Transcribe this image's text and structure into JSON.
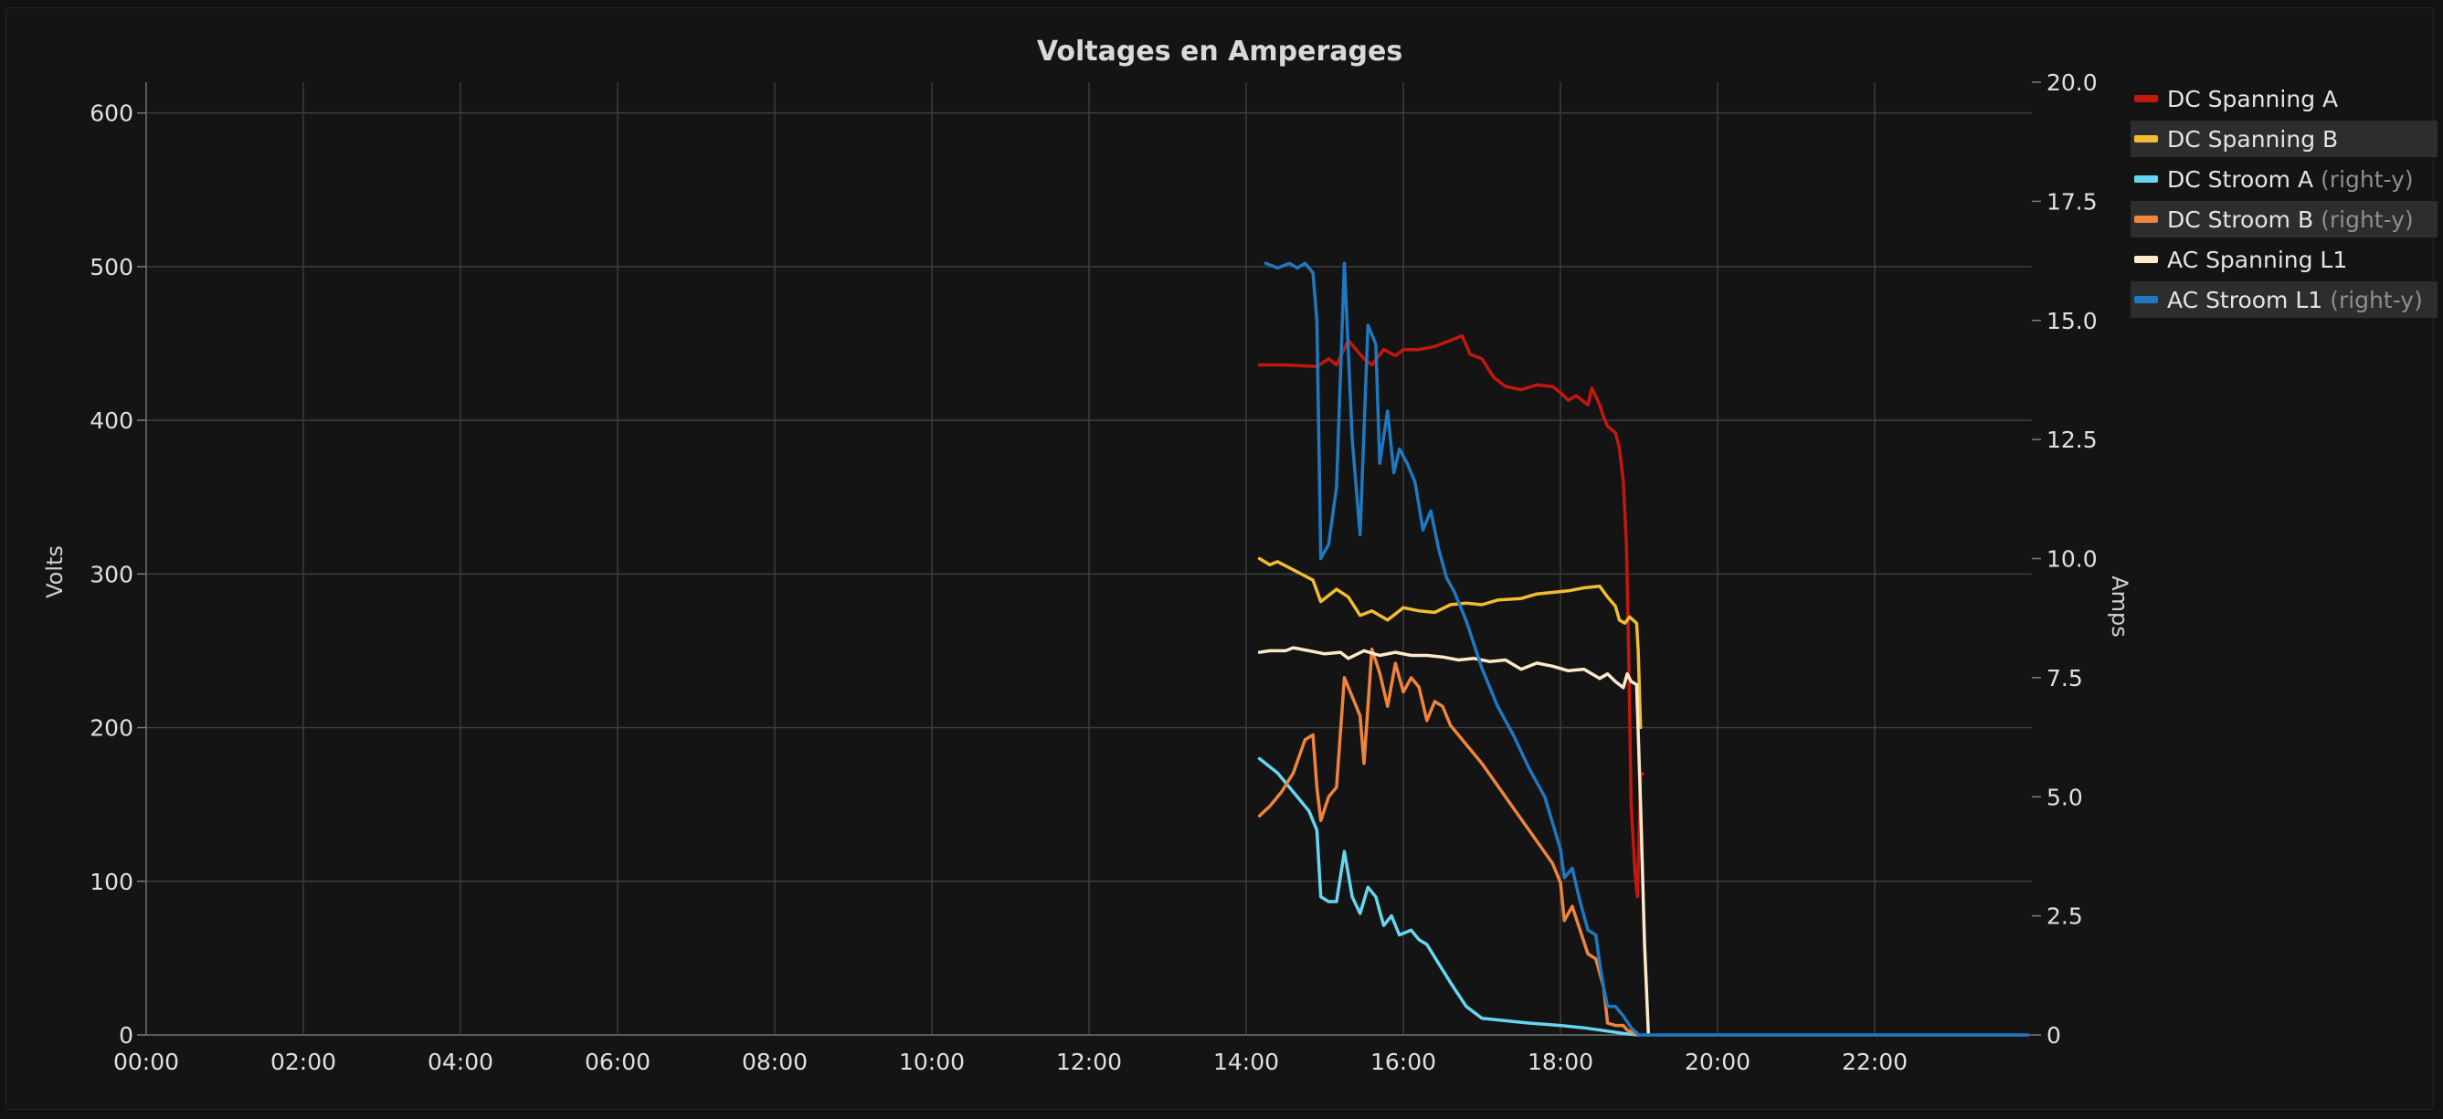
{
  "panel": {
    "title": "Voltages en Amperages"
  },
  "chart_data": {
    "type": "line",
    "title": "Voltages en Amperages",
    "xlabel": "",
    "ylabel": "Volts",
    "y2label": "Amps",
    "xlim": [
      0,
      24
    ],
    "ylim": [
      0,
      620
    ],
    "y2lim": [
      0,
      20
    ],
    "grid": true,
    "legend_position": "right",
    "x_tick_labels": [
      "00:00",
      "02:00",
      "04:00",
      "06:00",
      "08:00",
      "10:00",
      "12:00",
      "14:00",
      "16:00",
      "18:00",
      "20:00",
      "22:00"
    ],
    "y_tick_labels": [
      "0",
      "100",
      "200",
      "300",
      "400",
      "500",
      "600"
    ],
    "y2_tick_labels": [
      "0",
      "2.5",
      "5.0",
      "7.5",
      "10.0",
      "12.5",
      "15.0",
      "17.5",
      "20.0"
    ],
    "series": [
      {
        "name": "DC Spanning A",
        "axis": "left",
        "color": "#c4170f",
        "points": [
          [
            14.17,
            436
          ],
          [
            14.5,
            436
          ],
          [
            14.9,
            435
          ],
          [
            15.05,
            440
          ],
          [
            15.15,
            436
          ],
          [
            15.3,
            452
          ],
          [
            15.5,
            440
          ],
          [
            15.6,
            436
          ],
          [
            15.75,
            446
          ],
          [
            15.9,
            442
          ],
          [
            16.0,
            446
          ],
          [
            16.2,
            446
          ],
          [
            16.4,
            448
          ],
          [
            16.6,
            452
          ],
          [
            16.75,
            455
          ],
          [
            16.85,
            443
          ],
          [
            17.0,
            440
          ],
          [
            17.15,
            428
          ],
          [
            17.3,
            422
          ],
          [
            17.5,
            420
          ],
          [
            17.7,
            423
          ],
          [
            17.9,
            422
          ],
          [
            18.0,
            418
          ],
          [
            18.1,
            413
          ],
          [
            18.2,
            416
          ],
          [
            18.35,
            410
          ],
          [
            18.4,
            421
          ],
          [
            18.5,
            410
          ],
          [
            18.55,
            402
          ],
          [
            18.6,
            396
          ],
          [
            18.7,
            392
          ],
          [
            18.75,
            382
          ],
          [
            18.8,
            360
          ],
          [
            18.84,
            320
          ],
          [
            18.87,
            245
          ],
          [
            18.9,
            150
          ],
          [
            18.95,
            105
          ],
          [
            18.98,
            90
          ],
          [
            19.02,
            170
          ],
          [
            19.05,
            170
          ]
        ]
      },
      {
        "name": "DC Spanning B",
        "axis": "left",
        "color": "#f2bd32",
        "points": [
          [
            14.17,
            310
          ],
          [
            14.3,
            306
          ],
          [
            14.4,
            308
          ],
          [
            14.55,
            304
          ],
          [
            14.7,
            300
          ],
          [
            14.85,
            296
          ],
          [
            14.95,
            282
          ],
          [
            15.15,
            290
          ],
          [
            15.3,
            285
          ],
          [
            15.45,
            273
          ],
          [
            15.6,
            276
          ],
          [
            15.8,
            270
          ],
          [
            16.0,
            278
          ],
          [
            16.2,
            276
          ],
          [
            16.4,
            275
          ],
          [
            16.6,
            280
          ],
          [
            16.8,
            281
          ],
          [
            17.0,
            280
          ],
          [
            17.2,
            283
          ],
          [
            17.5,
            284
          ],
          [
            17.7,
            287
          ],
          [
            17.9,
            288
          ],
          [
            18.1,
            289
          ],
          [
            18.3,
            291
          ],
          [
            18.5,
            292
          ],
          [
            18.6,
            285
          ],
          [
            18.7,
            279
          ],
          [
            18.75,
            270
          ],
          [
            18.82,
            268
          ],
          [
            18.88,
            272
          ],
          [
            18.97,
            268
          ],
          [
            18.99,
            250
          ],
          [
            19.02,
            200
          ]
        ]
      },
      {
        "name": "DC Stroom A",
        "axis": "right",
        "color": "#67d5f0",
        "points": [
          [
            14.17,
            5.8
          ],
          [
            14.4,
            5.5
          ],
          [
            14.6,
            5.1
          ],
          [
            14.8,
            4.7
          ],
          [
            14.9,
            4.3
          ],
          [
            14.95,
            2.9
          ],
          [
            15.05,
            2.8
          ],
          [
            15.15,
            2.8
          ],
          [
            15.25,
            3.85
          ],
          [
            15.35,
            2.9
          ],
          [
            15.45,
            2.55
          ],
          [
            15.55,
            3.1
          ],
          [
            15.65,
            2.9
          ],
          [
            15.75,
            2.3
          ],
          [
            15.85,
            2.5
          ],
          [
            15.95,
            2.1
          ],
          [
            16.1,
            2.2
          ],
          [
            16.2,
            2.0
          ],
          [
            16.3,
            1.9
          ],
          [
            16.45,
            1.5
          ],
          [
            16.6,
            1.1
          ],
          [
            16.8,
            0.6
          ],
          [
            17.0,
            0.35
          ],
          [
            17.3,
            0.3
          ],
          [
            17.6,
            0.25
          ],
          [
            18.0,
            0.2
          ],
          [
            18.3,
            0.15
          ],
          [
            18.6,
            0.08
          ],
          [
            18.8,
            0.03
          ],
          [
            19.0,
            0.0
          ]
        ]
      },
      {
        "name": "DC Stroom B",
        "axis": "right",
        "color": "#ef843c",
        "points": [
          [
            14.17,
            4.6
          ],
          [
            14.3,
            4.8
          ],
          [
            14.45,
            5.1
          ],
          [
            14.6,
            5.5
          ],
          [
            14.75,
            6.2
          ],
          [
            14.85,
            6.3
          ],
          [
            14.9,
            5.2
          ],
          [
            14.95,
            4.5
          ],
          [
            15.05,
            5.0
          ],
          [
            15.15,
            5.2
          ],
          [
            15.25,
            7.5
          ],
          [
            15.35,
            7.1
          ],
          [
            15.45,
            6.7
          ],
          [
            15.5,
            5.7
          ],
          [
            15.6,
            8.1
          ],
          [
            15.7,
            7.6
          ],
          [
            15.8,
            6.9
          ],
          [
            15.9,
            7.8
          ],
          [
            16.0,
            7.2
          ],
          [
            16.1,
            7.5
          ],
          [
            16.2,
            7.3
          ],
          [
            16.3,
            6.6
          ],
          [
            16.4,
            7.0
          ],
          [
            16.5,
            6.9
          ],
          [
            16.6,
            6.5
          ],
          [
            16.7,
            6.3
          ],
          [
            16.85,
            6.0
          ],
          [
            17.0,
            5.7
          ],
          [
            17.3,
            5.0
          ],
          [
            17.6,
            4.3
          ],
          [
            17.9,
            3.6
          ],
          [
            18.0,
            3.2
          ],
          [
            18.05,
            2.4
          ],
          [
            18.15,
            2.7
          ],
          [
            18.25,
            2.2
          ],
          [
            18.35,
            1.7
          ],
          [
            18.45,
            1.6
          ],
          [
            18.55,
            1.0
          ],
          [
            18.6,
            0.25
          ],
          [
            18.7,
            0.2
          ],
          [
            18.8,
            0.2
          ],
          [
            18.85,
            0.1
          ],
          [
            19.0,
            0.0
          ]
        ]
      },
      {
        "name": "AC Spanning L1",
        "axis": "left",
        "color": "#fceaca",
        "points": [
          [
            14.17,
            249
          ],
          [
            14.3,
            250
          ],
          [
            14.5,
            250
          ],
          [
            14.6,
            252
          ],
          [
            14.8,
            250
          ],
          [
            15.0,
            248
          ],
          [
            15.2,
            249
          ],
          [
            15.3,
            245
          ],
          [
            15.5,
            250
          ],
          [
            15.7,
            247
          ],
          [
            15.9,
            249
          ],
          [
            16.1,
            247
          ],
          [
            16.3,
            247
          ],
          [
            16.5,
            246
          ],
          [
            16.7,
            244
          ],
          [
            16.9,
            245
          ],
          [
            17.1,
            243
          ],
          [
            17.3,
            244
          ],
          [
            17.5,
            238
          ],
          [
            17.7,
            242
          ],
          [
            17.9,
            240
          ],
          [
            18.1,
            237
          ],
          [
            18.3,
            238
          ],
          [
            18.5,
            232
          ],
          [
            18.6,
            235
          ],
          [
            18.7,
            230
          ],
          [
            18.8,
            226
          ],
          [
            18.85,
            235
          ],
          [
            18.9,
            230
          ],
          [
            18.97,
            228
          ],
          [
            19.02,
            150
          ],
          [
            19.07,
            60
          ],
          [
            19.12,
            0
          ]
        ]
      },
      {
        "name": "AC Stroom L1",
        "axis": "right",
        "color": "#1f78c1",
        "points": [
          [
            14.25,
            16.2
          ],
          [
            14.4,
            16.1
          ],
          [
            14.55,
            16.2
          ],
          [
            14.65,
            16.1
          ],
          [
            14.75,
            16.2
          ],
          [
            14.85,
            16.0
          ],
          [
            14.9,
            15.0
          ],
          [
            14.95,
            10.0
          ],
          [
            15.05,
            10.3
          ],
          [
            15.15,
            11.5
          ],
          [
            15.25,
            16.2
          ],
          [
            15.35,
            12.5
          ],
          [
            15.45,
            10.5
          ],
          [
            15.55,
            14.9
          ],
          [
            15.65,
            14.5
          ],
          [
            15.7,
            12.0
          ],
          [
            15.8,
            13.1
          ],
          [
            15.88,
            11.8
          ],
          [
            15.95,
            12.3
          ],
          [
            16.05,
            12.0
          ],
          [
            16.15,
            11.6
          ],
          [
            16.25,
            10.6
          ],
          [
            16.35,
            11.0
          ],
          [
            16.45,
            10.2
          ],
          [
            16.55,
            9.6
          ],
          [
            16.65,
            9.3
          ],
          [
            16.8,
            8.7
          ],
          [
            17.0,
            7.7
          ],
          [
            17.2,
            6.9
          ],
          [
            17.4,
            6.3
          ],
          [
            17.6,
            5.6
          ],
          [
            17.8,
            5.0
          ],
          [
            18.0,
            3.9
          ],
          [
            18.05,
            3.3
          ],
          [
            18.15,
            3.5
          ],
          [
            18.25,
            2.8
          ],
          [
            18.35,
            2.2
          ],
          [
            18.45,
            2.1
          ],
          [
            18.5,
            1.5
          ],
          [
            18.55,
            1.0
          ],
          [
            18.6,
            0.6
          ],
          [
            18.7,
            0.6
          ],
          [
            18.8,
            0.4
          ],
          [
            18.9,
            0.15
          ],
          [
            19.0,
            0.0
          ],
          [
            19.5,
            0.0
          ],
          [
            20.5,
            0.0
          ],
          [
            22.0,
            0.0
          ],
          [
            23.95,
            0.0
          ]
        ]
      }
    ]
  }
}
